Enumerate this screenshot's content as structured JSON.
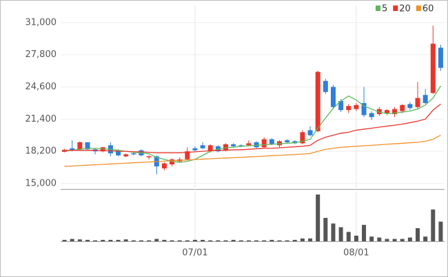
{
  "chart_data": {
    "type": "candlestick",
    "categories": [
      null,
      null,
      null,
      null,
      null,
      null,
      null,
      null,
      null,
      null,
      null,
      null,
      null,
      null,
      null,
      null,
      null,
      "07/01",
      null,
      null,
      null,
      null,
      null,
      null,
      null,
      null,
      null,
      null,
      null,
      null,
      null,
      null,
      null,
      null,
      null,
      null,
      null,
      null,
      "08/01",
      null,
      null,
      null,
      null,
      null,
      null,
      null,
      null,
      null,
      null,
      null
    ],
    "open": [
      18150,
      18500,
      18400,
      19100,
      18400,
      18200,
      18800,
      18300,
      17700,
      18000,
      18300,
      17600,
      17700,
      16500,
      16900,
      17200,
      17400,
      18500,
      18800,
      18200,
      18700,
      18300,
      18900,
      18800,
      18800,
      19100,
      18600,
      19400,
      18800,
      19300,
      19200,
      19000,
      20300,
      20200,
      25200,
      24600,
      23200,
      22300,
      22400,
      23000,
      22000,
      21900,
      22000,
      21900,
      22200,
      22900,
      22600,
      23800,
      24000,
      28500
    ],
    "high": [
      18450,
      19300,
      19200,
      19100,
      18450,
      18650,
      19100,
      18400,
      18000,
      18100,
      18400,
      17800,
      17800,
      17100,
      17500,
      17600,
      18600,
      18700,
      19100,
      18900,
      18800,
      19000,
      19000,
      18900,
      19300,
      19200,
      19600,
      19500,
      19300,
      19400,
      19300,
      20300,
      20700,
      26200,
      25400,
      24800,
      23400,
      22900,
      23000,
      24600,
      22200,
      22600,
      22400,
      22600,
      22900,
      23100,
      25100,
      24400,
      30700,
      28800
    ],
    "low": [
      18100,
      18200,
      18350,
      18300,
      17900,
      18100,
      17700,
      17700,
      17600,
      17800,
      17700,
      17400,
      15900,
      16300,
      16700,
      17100,
      17300,
      18200,
      18400,
      18100,
      18100,
      18200,
      18600,
      18600,
      18700,
      18500,
      18500,
      18800,
      18600,
      19000,
      18900,
      18900,
      19700,
      20100,
      23900,
      22400,
      22100,
      22000,
      22200,
      21600,
      21300,
      21700,
      21800,
      21600,
      22000,
      22300,
      22400,
      22900,
      23900,
      26200
    ],
    "close": [
      18350,
      18300,
      19100,
      18400,
      18200,
      18600,
      18000,
      17800,
      17900,
      17900,
      17800,
      17700,
      16700,
      17000,
      17400,
      17400,
      18200,
      18300,
      18500,
      18800,
      18200,
      18900,
      18700,
      18700,
      19000,
      18600,
      19400,
      18900,
      19200,
      19100,
      19000,
      20100,
      19800,
      26100,
      24100,
      22600,
      22300,
      22700,
      22800,
      21800,
      21600,
      22400,
      22300,
      22400,
      22800,
      22500,
      23500,
      23000,
      28900,
      26500
    ],
    "volume": [
      3,
      5,
      4,
      3,
      2,
      3,
      3,
      3,
      4,
      2,
      2,
      2,
      5,
      3,
      2,
      2,
      2,
      3,
      3,
      2,
      2,
      2,
      3,
      2,
      2,
      2,
      2,
      3,
      2,
      2,
      3,
      6,
      6,
      100,
      50,
      38,
      30,
      20,
      12,
      35,
      10,
      8,
      5,
      5,
      5,
      8,
      28,
      10,
      68,
      42
    ],
    "volume_ylim": [
      0,
      100
    ],
    "up_color": "#e8352b",
    "down_color": "#2f7fd8",
    "volume_color": "#555555",
    "series": [
      {
        "name": "5",
        "color": "#5cb85c",
        "values": [
          18250,
          18300,
          18400,
          18500,
          18500,
          18450,
          18400,
          18300,
          18200,
          18100,
          18050,
          17950,
          17600,
          17400,
          17200,
          17100,
          17200,
          17400,
          17800,
          18200,
          18400,
          18550,
          18600,
          18700,
          18750,
          18800,
          18850,
          18900,
          18950,
          19000,
          19050,
          19200,
          19400,
          20500,
          21500,
          22500,
          23200,
          23700,
          23300,
          22700,
          22400,
          22100,
          21950,
          22000,
          22100,
          22200,
          22400,
          22800,
          23500,
          24700
        ]
      },
      {
        "name": "20",
        "color": "#e8352b",
        "values": [
          18300,
          18300,
          18300,
          18300,
          18300,
          18250,
          18250,
          18200,
          18200,
          18150,
          18150,
          18100,
          18050,
          18050,
          18050,
          18050,
          18100,
          18150,
          18200,
          18250,
          18300,
          18300,
          18350,
          18350,
          18400,
          18450,
          18500,
          18500,
          18550,
          18600,
          18650,
          18700,
          18800,
          19300,
          19600,
          19800,
          20000,
          20100,
          20300,
          20400,
          20500,
          20600,
          20700,
          20800,
          20900,
          21050,
          21200,
          21400,
          22300,
          22900
        ]
      },
      {
        "name": "60",
        "color": "#f0902a",
        "values": [
          16700,
          16740,
          16780,
          16820,
          16860,
          16900,
          16940,
          16980,
          17020,
          17060,
          17100,
          17140,
          17180,
          17220,
          17260,
          17300,
          17340,
          17380,
          17420,
          17460,
          17500,
          17530,
          17560,
          17600,
          17640,
          17680,
          17720,
          17760,
          17800,
          17840,
          17880,
          17930,
          17980,
          18200,
          18400,
          18500,
          18600,
          18650,
          18700,
          18750,
          18800,
          18850,
          18900,
          18950,
          19000,
          19050,
          19100,
          19200,
          19400,
          19800
        ]
      }
    ],
    "ylim": [
      14450,
      32700
    ],
    "yticks": [
      {
        "value": 15000,
        "label": "15,000"
      },
      {
        "value": 18200,
        "label": "18,200"
      },
      {
        "value": 21400,
        "label": "21,400"
      },
      {
        "value": 24600,
        "label": "24,600"
      },
      {
        "value": 27800,
        "label": "27,800"
      },
      {
        "value": 31000,
        "label": "31,000"
      }
    ],
    "grid": true
  }
}
